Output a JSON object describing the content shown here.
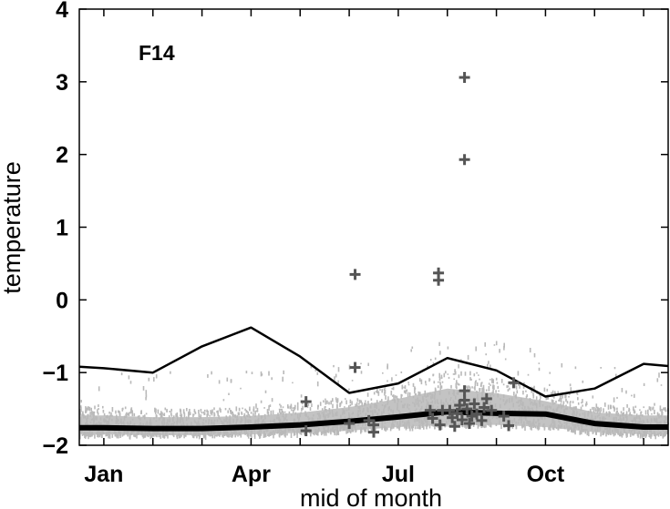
{
  "chart_data": {
    "type": "line",
    "title": "",
    "panel_label": "F14",
    "xlabel": "mid of month",
    "ylabel": "temperature",
    "xlim": [
      0.5,
      12.5
    ],
    "ylim": [
      -2,
      4
    ],
    "x_ticks": [
      {
        "value": 1,
        "label": "Jan"
      },
      {
        "value": 4,
        "label": "Apr"
      },
      {
        "value": 7,
        "label": "Jul"
      },
      {
        "value": 10,
        "label": "Oct"
      }
    ],
    "y_ticks": [
      -2,
      -1,
      0,
      1,
      2,
      3,
      4
    ],
    "grid": false,
    "x": [
      0.5,
      1,
      2,
      3,
      4,
      5,
      6,
      7,
      8,
      9,
      10,
      11,
      12,
      12.5
    ],
    "series": [
      {
        "style": "thin",
        "color": "#000000",
        "values": [
          -0.92,
          -0.94,
          -1.0,
          -0.64,
          -0.38,
          -0.78,
          -1.28,
          -1.15,
          -0.8,
          -0.97,
          -1.33,
          -1.22,
          -0.88,
          -0.91
        ]
      },
      {
        "style": "thick",
        "color": "#000000",
        "values": [
          -1.76,
          -1.76,
          -1.77,
          -1.77,
          -1.75,
          -1.72,
          -1.67,
          -1.61,
          -1.54,
          -1.56,
          -1.57,
          -1.7,
          -1.75,
          -1.75
        ]
      }
    ],
    "outliers": {
      "marker": "+",
      "color": "#555555",
      "points": [
        [
          5.12,
          -1.4
        ],
        [
          5.12,
          -1.8
        ],
        [
          6.12,
          0.35
        ],
        [
          6.12,
          -0.93
        ],
        [
          6.0,
          -1.7
        ],
        [
          6.5,
          -1.72
        ],
        [
          6.5,
          -1.82
        ],
        [
          6.4,
          -1.66
        ],
        [
          7.82,
          0.37
        ],
        [
          7.82,
          0.27
        ],
        [
          7.65,
          -1.52
        ],
        [
          7.7,
          -1.63
        ],
        [
          7.9,
          -1.52
        ],
        [
          7.85,
          -1.72
        ],
        [
          8.05,
          -1.52
        ],
        [
          8.1,
          -1.62
        ],
        [
          8.15,
          -1.74
        ],
        [
          8.2,
          -1.56
        ],
        [
          8.25,
          -1.45
        ],
        [
          8.3,
          -1.65
        ],
        [
          8.35,
          -1.38
        ],
        [
          8.4,
          -1.5
        ],
        [
          8.45,
          -1.7
        ],
        [
          8.5,
          -1.6
        ],
        [
          8.55,
          -1.43
        ],
        [
          8.6,
          -1.57
        ],
        [
          8.7,
          -1.66
        ],
        [
          8.75,
          -1.48
        ],
        [
          8.8,
          -1.36
        ],
        [
          8.9,
          -1.52
        ],
        [
          8.35,
          -1.25
        ],
        [
          9.15,
          -1.6
        ],
        [
          9.25,
          -1.73
        ],
        [
          9.35,
          -1.14
        ],
        [
          8.35,
          1.93
        ],
        [
          8.35,
          3.06
        ]
      ]
    },
    "spread": {
      "color": "#b9b9b9",
      "description_band_low": [
        -1.85,
        -1.85,
        -1.86,
        -1.86,
        -1.85,
        -1.83,
        -1.8,
        -1.75,
        -1.72,
        -1.72,
        -1.75,
        -1.82,
        -1.85,
        -1.85
      ],
      "description_band_high": [
        -1.45,
        -1.45,
        -1.48,
        -1.48,
        -1.46,
        -1.4,
        -1.3,
        -1.15,
        -0.95,
        -1.05,
        -1.2,
        -1.4,
        -1.45,
        -1.45
      ]
    }
  }
}
